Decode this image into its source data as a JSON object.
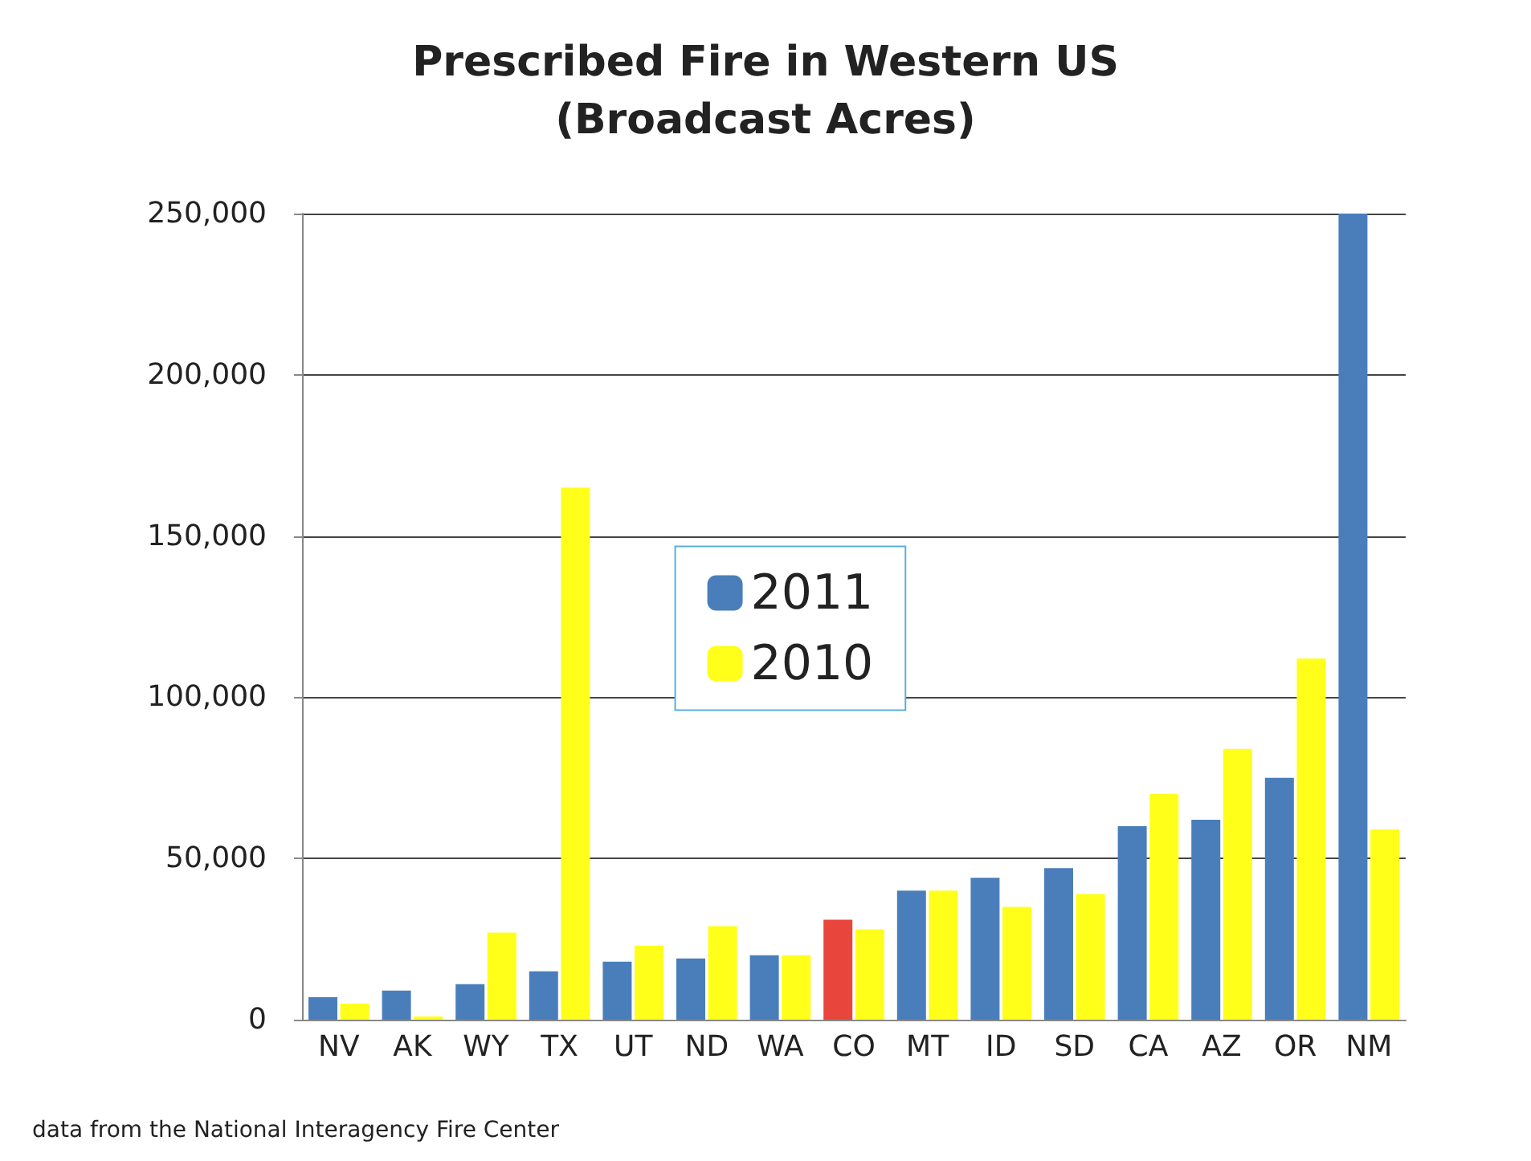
{
  "chart_data": {
    "type": "bar",
    "title": "Prescribed Fire in Western US\n(Broadcast Acres)",
    "categories": [
      "NV",
      "AK",
      "WY",
      "TX",
      "UT",
      "ND",
      "WA",
      "CO",
      "MT",
      "ID",
      "SD",
      "CA",
      "AZ",
      "OR",
      "NM"
    ],
    "series": [
      {
        "name": "2011",
        "color": "#4a7ebb",
        "colors": [
          "#4a7ebb",
          "#4a7ebb",
          "#4a7ebb",
          "#4a7ebb",
          "#4a7ebb",
          "#4a7ebb",
          "#4a7ebb",
          "#e8453c",
          "#4a7ebb",
          "#4a7ebb",
          "#4a7ebb",
          "#4a7ebb",
          "#4a7ebb",
          "#4a7ebb",
          "#4a7ebb"
        ],
        "values": [
          7000,
          9000,
          11000,
          15000,
          18000,
          19000,
          20000,
          31000,
          40000,
          44000,
          47000,
          60000,
          62000,
          75000,
          250000
        ]
      },
      {
        "name": "2010",
        "color": "#ffff1a",
        "values": [
          5000,
          1000,
          27000,
          165000,
          23000,
          29000,
          20000,
          28000,
          40000,
          35000,
          39000,
          70000,
          84000,
          112000,
          59000
        ]
      }
    ],
    "ylim": [
      0,
      250000
    ],
    "yticks": [
      0,
      {
        "value": 50000,
        "label": "50,000"
      },
      {
        "value": 100000,
        "label": "100,000"
      },
      {
        "value": 150000,
        "label": "150,000"
      },
      {
        "value": 200000,
        "label": "200,000"
      },
      {
        "value": 250000,
        "label": "250,000"
      }
    ],
    "grid": "y",
    "legend": "center",
    "annotations": [
      "data from the National Interagency Fire Center"
    ]
  }
}
